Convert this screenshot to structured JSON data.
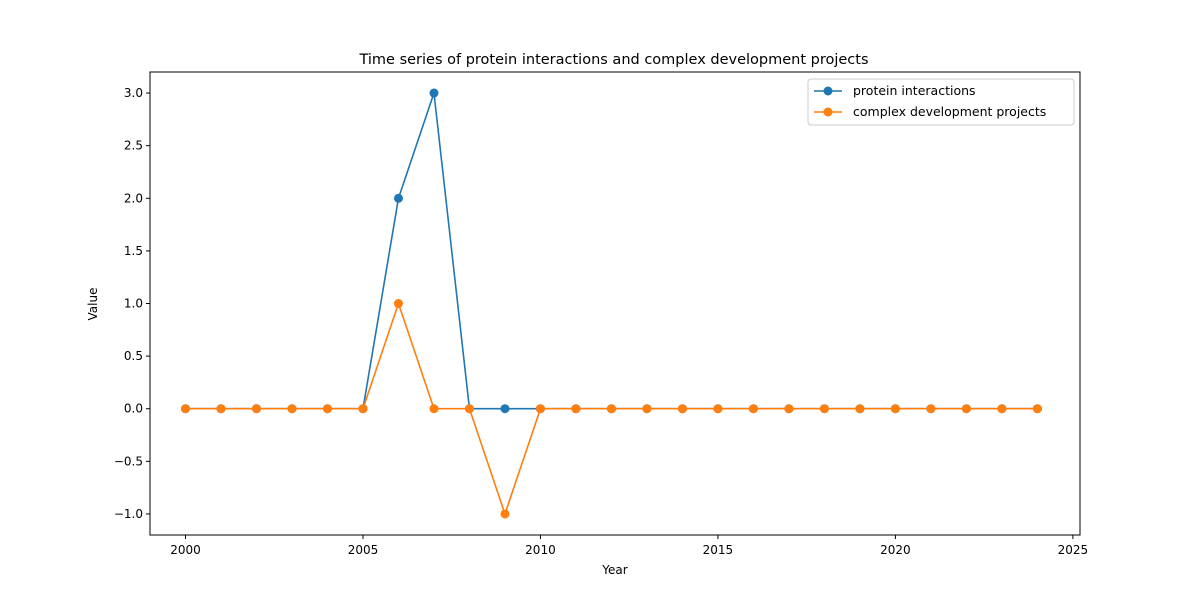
{
  "chart_data": {
    "type": "line",
    "title": "Time series of protein interactions and complex development projects",
    "xlabel": "Year",
    "ylabel": "Value",
    "xlim": [
      1999,
      2025.2
    ],
    "ylim": [
      -1.2,
      3.2
    ],
    "xticks": [
      2000,
      2005,
      2010,
      2015,
      2020,
      2025
    ],
    "xtick_labels": [
      "2000",
      "2005",
      "2010",
      "2015",
      "2020",
      "2025"
    ],
    "yticks": [
      -1.0,
      -0.5,
      0.0,
      0.5,
      1.0,
      1.5,
      2.0,
      2.5,
      3.0
    ],
    "ytick_labels": [
      "−1.0",
      "−0.5",
      "0.0",
      "0.5",
      "1.0",
      "1.5",
      "2.0",
      "2.5",
      "3.0"
    ],
    "grid": false,
    "legend_position": "top-right",
    "x": [
      2000,
      2001,
      2002,
      2003,
      2004,
      2005,
      2006,
      2007,
      2008,
      2009,
      2010,
      2011,
      2012,
      2013,
      2014,
      2015,
      2016,
      2017,
      2018,
      2019,
      2020,
      2021,
      2022,
      2023,
      2024
    ],
    "series": [
      {
        "name": "protein interactions",
        "color": "#1f77b4",
        "marker": "circle",
        "values": [
          0,
          0,
          0,
          0,
          0,
          0,
          2,
          3,
          0,
          0,
          0,
          0,
          0,
          0,
          0,
          0,
          0,
          0,
          0,
          0,
          0,
          0,
          0,
          0,
          0
        ]
      },
      {
        "name": "complex development projects",
        "color": "#ff7f0e",
        "marker": "circle",
        "values": [
          0,
          0,
          0,
          0,
          0,
          0,
          1,
          0,
          0,
          -1,
          0,
          0,
          0,
          0,
          0,
          0,
          0,
          0,
          0,
          0,
          0,
          0,
          0,
          0,
          0
        ]
      }
    ]
  }
}
